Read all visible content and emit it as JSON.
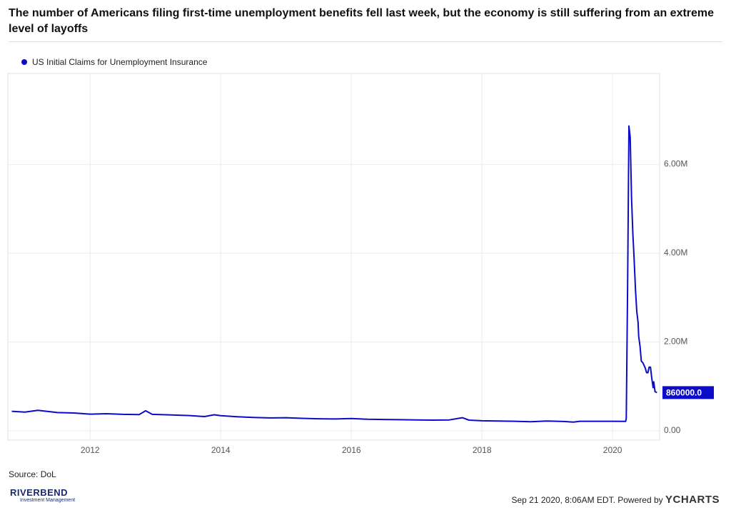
{
  "chart_data": {
    "type": "line",
    "title": "The number of Americans filing first-time unemployment benefits fell last week, but the economy is still suffering from an extreme level of layoffs",
    "x": [
      2010.8,
      2011.0,
      2011.2,
      2011.5,
      2011.75,
      2012.0,
      2012.25,
      2012.5,
      2012.75,
      2012.85,
      2012.95,
      2013.25,
      2013.5,
      2013.75,
      2013.9,
      2014.0,
      2014.25,
      2014.5,
      2014.75,
      2015.0,
      2015.25,
      2015.5,
      2015.75,
      2016.0,
      2016.25,
      2016.5,
      2016.75,
      2017.0,
      2017.25,
      2017.5,
      2017.7,
      2017.8,
      2018.0,
      2018.25,
      2018.5,
      2018.75,
      2019.0,
      2019.25,
      2019.4,
      2019.5,
      2019.75,
      2020.0,
      2020.2,
      2020.21,
      2020.23,
      2020.25,
      2020.27,
      2020.29,
      2020.31,
      2020.33,
      2020.35,
      2020.37,
      2020.39,
      2020.4,
      2020.42,
      2020.44,
      2020.46,
      2020.48,
      2020.5,
      2020.52,
      2020.54,
      2020.56,
      2020.58,
      2020.6,
      2020.62,
      2020.63,
      2020.65,
      2020.68
    ],
    "series": [
      {
        "name": "US Initial Claims for Unemployment Insurance",
        "color": "#0b0bc8",
        "values": [
          440000,
          420000,
          460000,
          410000,
          400000,
          375000,
          385000,
          370000,
          365000,
          450000,
          370000,
          355000,
          345000,
          320000,
          360000,
          340000,
          315000,
          300000,
          290000,
          295000,
          280000,
          270000,
          265000,
          275000,
          260000,
          255000,
          250000,
          245000,
          240000,
          245000,
          295000,
          240000,
          225000,
          220000,
          215000,
          205000,
          220000,
          210000,
          195000,
          215000,
          215000,
          215000,
          211000,
          282000,
          3307000,
          6867000,
          6615000,
          5237000,
          4442000,
          3867000,
          3176000,
          2687000,
          2446000,
          2126000,
          1897000,
          1566000,
          1540000,
          1482000,
          1413000,
          1310000,
          1307000,
          1435000,
          1434000,
          1186000,
          971000,
          1104000,
          881000,
          860000
        ],
        "value_labels": [
          null,
          null,
          null,
          null,
          null,
          null,
          null,
          null,
          null,
          null,
          null,
          null,
          null,
          null,
          null,
          null,
          null,
          null,
          null,
          null,
          null,
          null,
          null,
          null,
          null,
          null,
          null,
          null,
          null,
          null,
          null,
          null,
          null,
          null,
          null,
          null,
          null,
          null,
          null,
          null,
          null,
          null,
          null,
          null,
          null,
          null,
          null,
          null,
          null,
          null,
          null,
          null,
          null,
          null,
          null,
          null,
          null,
          null,
          null,
          null,
          null,
          null,
          null,
          null,
          null,
          null,
          null,
          "860000.0"
        ]
      }
    ],
    "xlim": [
      2010.74,
      2020.72
    ],
    "xticks": [
      2012,
      2014,
      2016,
      2018,
      2020
    ],
    "ylim": [
      -210000,
      8050000
    ],
    "yticks": [
      {
        "value": 0,
        "label": "0.00"
      },
      {
        "value": 2000000,
        "label": "2.00M"
      },
      {
        "value": 4000000,
        "label": "4.00M"
      },
      {
        "value": 6000000,
        "label": "6.00M"
      }
    ],
    "grid": true,
    "source": "Source: DoL",
    "footer": "Sep 21 2020, 8:06AM EDT. Powered by",
    "brand": "YCHARTS",
    "logo": {
      "name": "RIVERBEND",
      "tagline": "Investment Management"
    }
  }
}
